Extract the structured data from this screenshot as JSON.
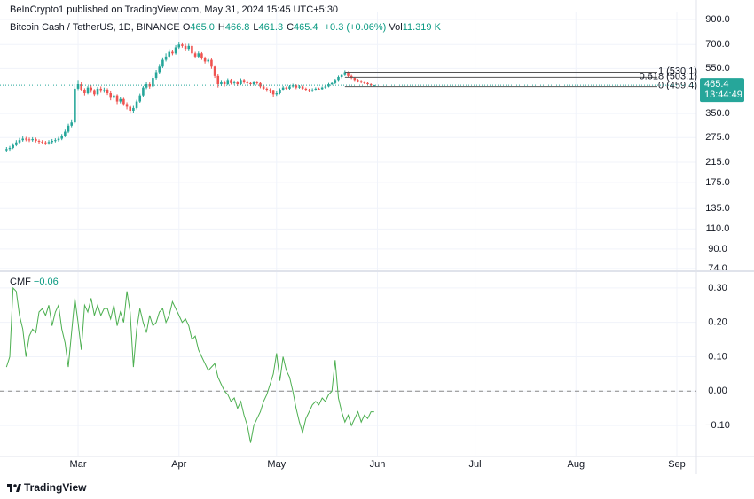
{
  "header": {
    "published": "BeInCrypto1 published on TradingView.com, May 31, 2024 15:45 UTC+5:30",
    "symbol": "Bitcoin Cash / TetherUS, 1D, BINANCE",
    "ohlc": [
      {
        "key": "O",
        "value": "465.0"
      },
      {
        "key": "H",
        "value": "466.8"
      },
      {
        "key": "L",
        "value": "461.3"
      },
      {
        "key": "C",
        "value": "465.4"
      }
    ],
    "change": "+0.3 (+0.06%)",
    "volume": {
      "key": "Vol",
      "value": "11.319 K"
    }
  },
  "chart_data": [
    {
      "type": "candlestick",
      "log_scale": true,
      "grid": true,
      "up_color": "#26a69a",
      "down_color": "#ef5350",
      "open": [
        242,
        245,
        248,
        255,
        262,
        268,
        272,
        270,
        268,
        271,
        266,
        264,
        262,
        260,
        263,
        266,
        268,
        272,
        280,
        292,
        310,
        320,
        450,
        470,
        445,
        430,
        455,
        440,
        425,
        450,
        440,
        445,
        430,
        410,
        420,
        395,
        405,
        385,
        375,
        360,
        370,
        395,
        420,
        455,
        470,
        460,
        500,
        530,
        560,
        600,
        620,
        650,
        640,
        680,
        700,
        690,
        670,
        690,
        640,
        620,
        640,
        610,
        590,
        600,
        560,
        510,
        470,
        480,
        470,
        490,
        475,
        480,
        470,
        490,
        480,
        475,
        470,
        480,
        475,
        460,
        450,
        445,
        440,
        425,
        430,
        445,
        455,
        450,
        460,
        465,
        455,
        460,
        450,
        445,
        440,
        445,
        450,
        448,
        455,
        460,
        470,
        475,
        490,
        505,
        515,
        530,
        510,
        500,
        490,
        485,
        480,
        475,
        470,
        465.0
      ],
      "high": [
        250,
        253,
        260,
        268,
        274,
        278,
        277,
        275,
        276,
        275,
        270,
        268,
        266,
        268,
        271,
        273,
        277,
        285,
        298,
        316,
        330,
        470,
        490,
        480,
        452,
        462,
        465,
        448,
        458,
        460,
        455,
        452,
        438,
        428,
        425,
        415,
        410,
        392,
        380,
        378,
        402,
        428,
        462,
        480,
        478,
        510,
        542,
        575,
        615,
        640,
        668,
        665,
        695,
        720,
        715,
        705,
        705,
        700,
        650,
        652,
        648,
        620,
        612,
        608,
        568,
        520,
        490,
        488,
        498,
        496,
        488,
        486,
        498,
        496,
        488,
        482,
        486,
        486,
        480,
        466,
        456,
        452,
        445,
        438,
        452,
        462,
        460,
        466,
        472,
        470,
        466,
        464,
        455,
        450,
        452,
        456,
        455,
        460,
        466,
        476,
        482,
        496,
        512,
        522,
        540,
        535,
        516,
        505,
        495,
        490,
        485,
        480,
        474,
        466.8
      ],
      "low": [
        238,
        241,
        245,
        252,
        258,
        264,
        265,
        263,
        264,
        262,
        259,
        257,
        255,
        256,
        259,
        262,
        264,
        268,
        276,
        288,
        305,
        315,
        440,
        438,
        420,
        425,
        432,
        418,
        420,
        432,
        432,
        422,
        400,
        402,
        385,
        388,
        378,
        365,
        350,
        352,
        365,
        390,
        415,
        448,
        450,
        455,
        492,
        522,
        552,
        590,
        610,
        628,
        632,
        670,
        678,
        655,
        660,
        630,
        608,
        612,
        600,
        578,
        580,
        548,
        500,
        455,
        462,
        460,
        465,
        468,
        468,
        462,
        465,
        472,
        468,
        462,
        465,
        468,
        452,
        442,
        436,
        430,
        415,
        418,
        425,
        440,
        442,
        445,
        455,
        448,
        450,
        444,
        438,
        434,
        435,
        440,
        442,
        444,
        450,
        456,
        465,
        470,
        485,
        498,
        510,
        505,
        494,
        485,
        478,
        474,
        470,
        465,
        460,
        461.3
      ],
      "close": [
        245,
        248,
        255,
        262,
        268,
        272,
        270,
        268,
        271,
        266,
        264,
        262,
        260,
        263,
        266,
        268,
        272,
        280,
        292,
        310,
        320,
        450,
        470,
        445,
        430,
        455,
        440,
        425,
        450,
        440,
        445,
        430,
        410,
        420,
        395,
        405,
        385,
        375,
        360,
        370,
        395,
        420,
        455,
        470,
        460,
        500,
        530,
        560,
        600,
        620,
        650,
        640,
        680,
        700,
        690,
        670,
        690,
        640,
        620,
        640,
        610,
        590,
        600,
        560,
        510,
        470,
        480,
        470,
        490,
        475,
        480,
        470,
        490,
        480,
        475,
        470,
        480,
        475,
        460,
        450,
        445,
        440,
        425,
        430,
        445,
        455,
        450,
        460,
        465,
        455,
        460,
        450,
        445,
        440,
        445,
        450,
        448,
        455,
        460,
        470,
        475,
        490,
        505,
        515,
        530,
        510,
        500,
        490,
        485,
        480,
        475,
        470,
        465,
        465.4
      ],
      "xlim": [
        -2,
        212
      ],
      "xticks": [
        {
          "value": 22,
          "label": "Mar"
        },
        {
          "value": 53,
          "label": "Apr"
        },
        {
          "value": 83,
          "label": "May"
        },
        {
          "value": 114,
          "label": "Jun"
        },
        {
          "value": 144,
          "label": "Jul"
        },
        {
          "value": 175,
          "label": "Aug"
        },
        {
          "value": 206,
          "label": "Sep"
        }
      ],
      "ylim": [
        72,
        966
      ],
      "yticks": [
        {
          "value": 74,
          "label": "74.0"
        },
        {
          "value": 90,
          "label": "90.0"
        },
        {
          "value": 110,
          "label": "110.0"
        },
        {
          "value": 135,
          "label": "135.0"
        },
        {
          "value": 175,
          "label": "175.0"
        },
        {
          "value": 215,
          "label": "215.0"
        },
        {
          "value": 275,
          "label": "275.0"
        },
        {
          "value": 350,
          "label": "350.0"
        },
        {
          "value": 550,
          "label": "550.0"
        },
        {
          "value": 700,
          "label": "700.0"
        },
        {
          "value": 900,
          "label": "900.0"
        }
      ],
      "last_price": {
        "value": 465.4,
        "label": "465.4"
      },
      "countdown": "13:44:49",
      "fib_x": [
        104,
        200
      ],
      "fib_levels": [
        {
          "value": 530.1,
          "label": "1 (530.1)"
        },
        {
          "value": 503.1,
          "label": "0.618 (503.1)"
        },
        {
          "value": 459.4,
          "label": "0 (459.4)"
        }
      ]
    },
    {
      "type": "line",
      "title": "CMF",
      "color": "#4caf50",
      "xlim": [
        -2,
        212
      ],
      "ylim": [
        -0.19,
        0.346
      ],
      "baseline": 0,
      "yticks": [
        {
          "value": 0.3,
          "label": "0.30"
        },
        {
          "value": 0.2,
          "label": "0.20"
        },
        {
          "value": 0.1,
          "label": "0.10"
        },
        {
          "value": 0,
          "label": "0.00"
        },
        {
          "value": -0.1,
          "label": "−0.10"
        }
      ],
      "last_label": {
        "value": -0.06,
        "label": "−0.06"
      },
      "values": [
        0.07,
        0.1,
        0.3,
        0.29,
        0.22,
        0.18,
        0.1,
        0.16,
        0.18,
        0.17,
        0.23,
        0.24,
        0.22,
        0.25,
        0.19,
        0.23,
        0.25,
        0.18,
        0.14,
        0.07,
        0.17,
        0.27,
        0.2,
        0.12,
        0.25,
        0.23,
        0.27,
        0.22,
        0.25,
        0.22,
        0.24,
        0.24,
        0.21,
        0.25,
        0.19,
        0.23,
        0.2,
        0.29,
        0.23,
        0.07,
        0.18,
        0.24,
        0.2,
        0.17,
        0.22,
        0.19,
        0.2,
        0.23,
        0.24,
        0.2,
        0.22,
        0.26,
        0.24,
        0.22,
        0.2,
        0.21,
        0.19,
        0.15,
        0.16,
        0.12,
        0.1,
        0.08,
        0.06,
        0.07,
        0.08,
        0.04,
        0.02,
        0.0,
        -0.01,
        -0.03,
        -0.02,
        -0.05,
        -0.03,
        -0.07,
        -0.1,
        -0.15,
        -0.1,
        -0.08,
        -0.06,
        -0.03,
        -0.01,
        0.02,
        0.05,
        0.11,
        0.03,
        0.1,
        0.06,
        0.04,
        0.0,
        -0.05,
        -0.09,
        -0.12,
        -0.08,
        -0.06,
        -0.04,
        -0.03,
        -0.04,
        -0.02,
        -0.03,
        -0.01,
        0.0,
        0.09,
        -0.02,
        -0.06,
        -0.09,
        -0.07,
        -0.1,
        -0.08,
        -0.06,
        -0.09,
        -0.07,
        -0.08,
        -0.06,
        -0.06
      ]
    }
  ],
  "footer": {
    "brand": "TradingView"
  }
}
